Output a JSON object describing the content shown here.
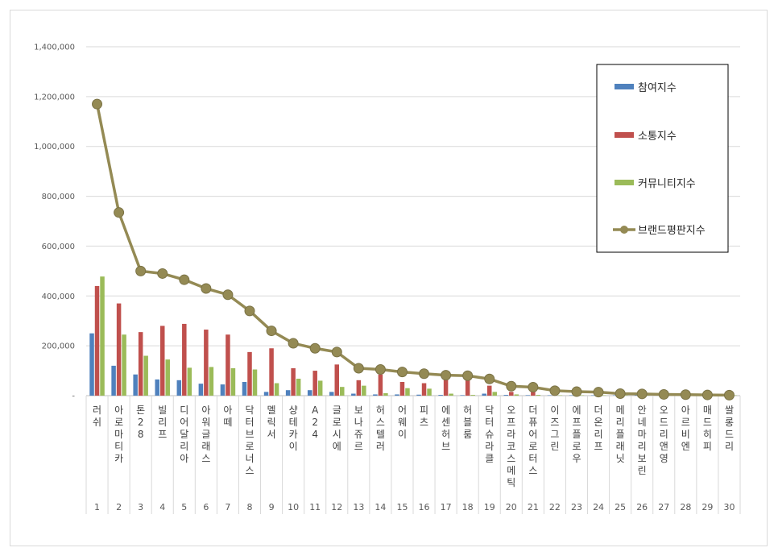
{
  "chart_data": {
    "type": "bar",
    "title": "",
    "xlabel": "",
    "ylabel": "",
    "ylim": [
      0,
      1400000
    ],
    "yticks": [
      0,
      200000,
      400000,
      600000,
      800000,
      1000000,
      1200000,
      1400000
    ],
    "ytick_labels": [
      "-",
      "200,000",
      "400,000",
      "600,000",
      "800,000",
      "1,000,000",
      "1,200,000",
      "1,400,000"
    ],
    "grid": true,
    "legend_position": "top-right",
    "ranks": [
      "1",
      "2",
      "3",
      "4",
      "5",
      "6",
      "7",
      "8",
      "9",
      "10",
      "11",
      "12",
      "13",
      "14",
      "15",
      "16",
      "17",
      "18",
      "19",
      "20",
      "21",
      "22",
      "23",
      "24",
      "25",
      "26",
      "27",
      "28",
      "29",
      "30"
    ],
    "categories": [
      "러쉬",
      "아로마티카",
      "톤28",
      "빌리프",
      "디어달리아",
      "아워글래스",
      "아떼",
      "닥터브로너스",
      "멜릭서",
      "샹테카이",
      "A24",
      "글로시에",
      "보나쥬르",
      "허스텔러",
      "어웨이",
      "피츠",
      "에센허브",
      "허블룸",
      "닥터슈라클",
      "오프라코스메틱",
      "더퓨어로터스",
      "이즈그린",
      "에프플로우",
      "더온리프",
      "메리플래닛",
      "안네마리보린",
      "오드리앤영",
      "아르비엔",
      "매드히피",
      "쌀롱드리"
    ],
    "series": [
      {
        "name": "참여지수",
        "type": "bar",
        "color": "#4f81bd",
        "values": [
          250000,
          120000,
          85000,
          65000,
          62000,
          48000,
          45000,
          55000,
          15000,
          22000,
          22000,
          15000,
          8000,
          5000,
          5000,
          4000,
          3000,
          2000,
          8000,
          3000,
          2000,
          1000,
          1000,
          1000,
          500,
          500,
          500,
          500,
          500,
          500
        ]
      },
      {
        "name": "소통지수",
        "type": "bar",
        "color": "#c0504d",
        "values": [
          440000,
          370000,
          255000,
          280000,
          288000,
          265000,
          245000,
          175000,
          190000,
          110000,
          100000,
          125000,
          62000,
          85000,
          55000,
          50000,
          70000,
          75000,
          40000,
          15000,
          15000,
          10000,
          8000,
          6000,
          3000,
          3000,
          2000,
          2000,
          2000,
          1000
        ]
      },
      {
        "name": "커뮤니티지수",
        "type": "bar",
        "color": "#9bbb59",
        "values": [
          478000,
          245000,
          160000,
          145000,
          112000,
          115000,
          110000,
          105000,
          50000,
          68000,
          60000,
          35000,
          40000,
          10000,
          30000,
          28000,
          8000,
          3000,
          15000,
          5000,
          3000,
          1000,
          1000,
          1000,
          500,
          500,
          500,
          500,
          500,
          500
        ]
      },
      {
        "name": "브랜드평판지수",
        "type": "line",
        "color": "#948a54",
        "values": [
          1170000,
          735000,
          500000,
          490000,
          465000,
          430000,
          405000,
          340000,
          260000,
          210000,
          190000,
          175000,
          110000,
          105000,
          95000,
          88000,
          82000,
          80000,
          67000,
          38000,
          34000,
          20000,
          16000,
          14000,
          8000,
          7000,
          5000,
          4000,
          3000,
          2000
        ]
      }
    ]
  }
}
